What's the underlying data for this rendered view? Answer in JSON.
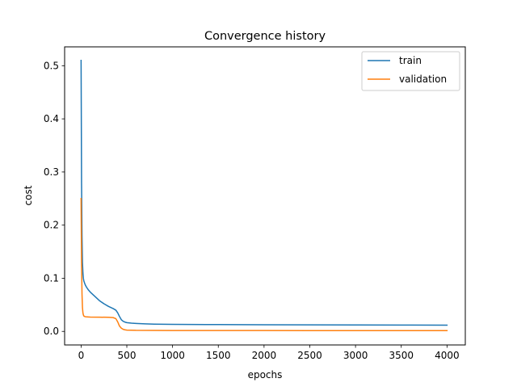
{
  "chart_data": {
    "type": "line",
    "title": "Convergence history",
    "xlabel": "epochs",
    "ylabel": "cost",
    "xlim": [
      -180,
      4200
    ],
    "ylim": [
      -0.0255,
      0.5355
    ],
    "xticks": [
      0,
      500,
      1000,
      1500,
      2000,
      2500,
      3000,
      3500,
      4000
    ],
    "yticks": [
      0.0,
      0.1,
      0.2,
      0.3,
      0.4,
      0.5
    ],
    "xtick_labels": [
      "0",
      "500",
      "1000",
      "1500",
      "2000",
      "2500",
      "3000",
      "3500",
      "4000"
    ],
    "ytick_labels": [
      "0.0",
      "0.1",
      "0.2",
      "0.3",
      "0.4",
      "0.5"
    ],
    "grid": false,
    "legend_position": "top-right",
    "series": [
      {
        "name": "train",
        "color": "#1f77b4",
        "x": [
          0,
          2,
          5,
          10,
          15,
          20,
          25,
          30,
          40,
          50,
          60,
          80,
          100,
          150,
          200,
          250,
          300,
          350,
          380,
          400,
          420,
          440,
          460,
          480,
          500,
          550,
          600,
          700,
          800,
          1000,
          1500,
          2000,
          2500,
          3000,
          3500,
          4000
        ],
        "y": [
          0.51,
          0.42,
          0.28,
          0.18,
          0.13,
          0.11,
          0.1,
          0.095,
          0.09,
          0.086,
          0.083,
          0.078,
          0.074,
          0.066,
          0.058,
          0.052,
          0.047,
          0.043,
          0.04,
          0.035,
          0.028,
          0.022,
          0.019,
          0.0175,
          0.0165,
          0.0155,
          0.015,
          0.0142,
          0.0137,
          0.0132,
          0.0128,
          0.0126,
          0.0124,
          0.0122,
          0.012,
          0.0118
        ]
      },
      {
        "name": "validation",
        "color": "#ff7f0e",
        "x": [
          0,
          2,
          5,
          10,
          15,
          20,
          25,
          30,
          40,
          50,
          80,
          100,
          200,
          300,
          350,
          380,
          400,
          420,
          440,
          460,
          480,
          500,
          600,
          800,
          1000,
          1500,
          2000,
          2500,
          3000,
          3500,
          4000
        ],
        "y": [
          0.25,
          0.2,
          0.13,
          0.07,
          0.045,
          0.035,
          0.031,
          0.029,
          0.028,
          0.0275,
          0.0272,
          0.027,
          0.0268,
          0.0265,
          0.026,
          0.024,
          0.018,
          0.01,
          0.006,
          0.004,
          0.003,
          0.0025,
          0.002,
          0.0018,
          0.0017,
          0.0016,
          0.0016,
          0.0015,
          0.0015,
          0.0015,
          0.0015
        ]
      }
    ]
  }
}
